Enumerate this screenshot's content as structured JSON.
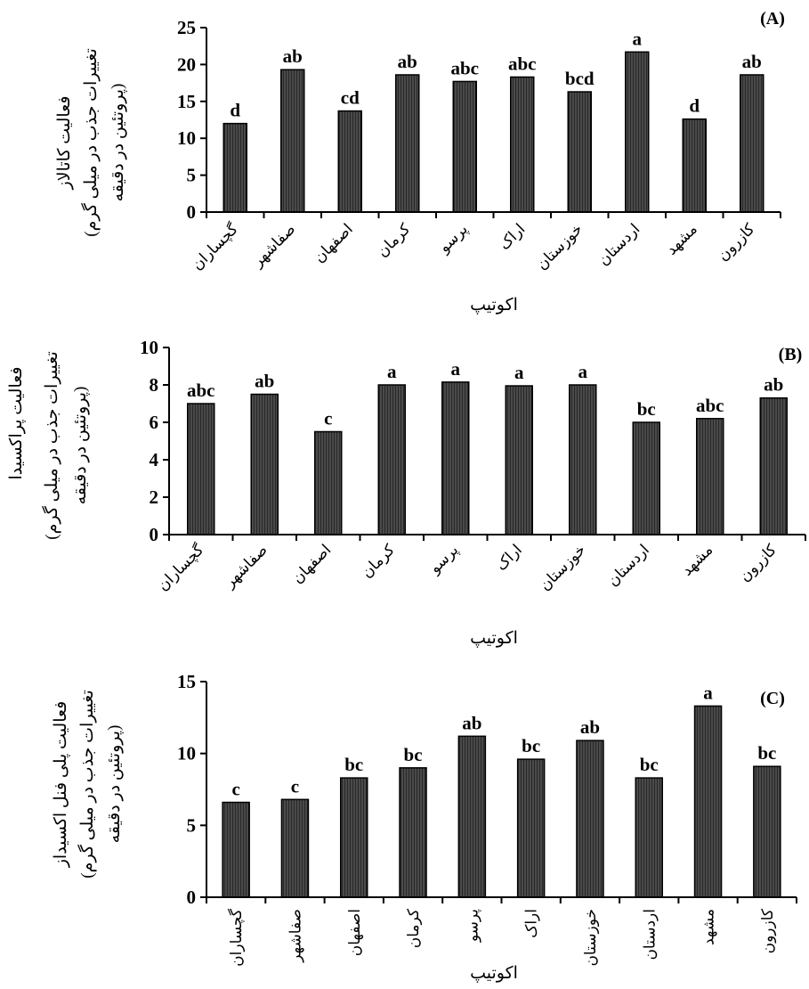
{
  "chart_data": [
    {
      "type": "bar",
      "panel_label": "(A)",
      "categories": [
        "گچساران",
        "صفاشهر",
        "اصفهان",
        "کرمان",
        "پرسو",
        "اراک",
        "خوزستان",
        "اردستان",
        "مشهد",
        "کازرون"
      ],
      "values": [
        12,
        19.3,
        13.7,
        18.6,
        17.7,
        18.3,
        16.3,
        21.7,
        12.6,
        18.6
      ],
      "significance_letters": [
        "d",
        "ab",
        "cd",
        "ab",
        "abc",
        "abc",
        "bcd",
        "a",
        "d",
        "ab"
      ],
      "xlabel": "اکوتیپ",
      "ylabel_lines": [
        "فعالیت کاتالاز",
        "(تغییرات جذب در میلی گرم",
        "پروتئین در دقیقه)"
      ],
      "ylim": [
        0,
        25
      ],
      "yticks": [
        0,
        5,
        10,
        15,
        20,
        25
      ],
      "grid": false,
      "bar_color": "#3a3a3a"
    },
    {
      "type": "bar",
      "panel_label": "(B)",
      "categories": [
        "گچساران",
        "صفاشهر",
        "اصفهان",
        "کرمان",
        "پرسو",
        "اراک",
        "خوزستان",
        "اردستان",
        "مشهد",
        "کازرون"
      ],
      "values": [
        7.0,
        7.5,
        5.5,
        8.0,
        8.15,
        7.95,
        8.0,
        6.0,
        6.2,
        7.3
      ],
      "significance_letters": [
        "abc",
        "ab",
        "c",
        "a",
        "a",
        "a",
        "a",
        "bc",
        "abc",
        "ab"
      ],
      "xlabel": "اکوتیپ",
      "ylabel_lines": [
        "فعالیت پراکسیدا",
        "(تغییرات جذب در میلی گرم",
        "پروتئین در دقیقه)"
      ],
      "ylim": [
        0,
        10
      ],
      "yticks": [
        0,
        2,
        4,
        6,
        8,
        10
      ],
      "grid": false,
      "bar_color": "#3a3a3a"
    },
    {
      "type": "bar",
      "panel_label": "(C)",
      "categories": [
        "گچساران",
        "صفاشهر",
        "اصفهان",
        "کرمان",
        "پرسو",
        "اراک",
        "خوزستان",
        "اردستان",
        "مشهد",
        "کازرون"
      ],
      "values": [
        6.6,
        6.8,
        8.3,
        9.0,
        11.2,
        9.6,
        10.9,
        8.3,
        13.3,
        9.1
      ],
      "significance_letters": [
        "c",
        "c",
        "bc",
        "bc",
        "ab",
        "bc",
        "ab",
        "bc",
        "a",
        "bc"
      ],
      "xlabel": "اکوتیپ",
      "ylabel_lines": [
        "فعالیت پلی فنل اکسیداز",
        "(تغییرات جذب در میلی گرم",
        "پروتئین در دقیقه)"
      ],
      "ylim": [
        0,
        15
      ],
      "yticks": [
        0,
        5,
        10,
        15
      ],
      "grid": false,
      "bar_color": "#3a3a3a"
    }
  ]
}
